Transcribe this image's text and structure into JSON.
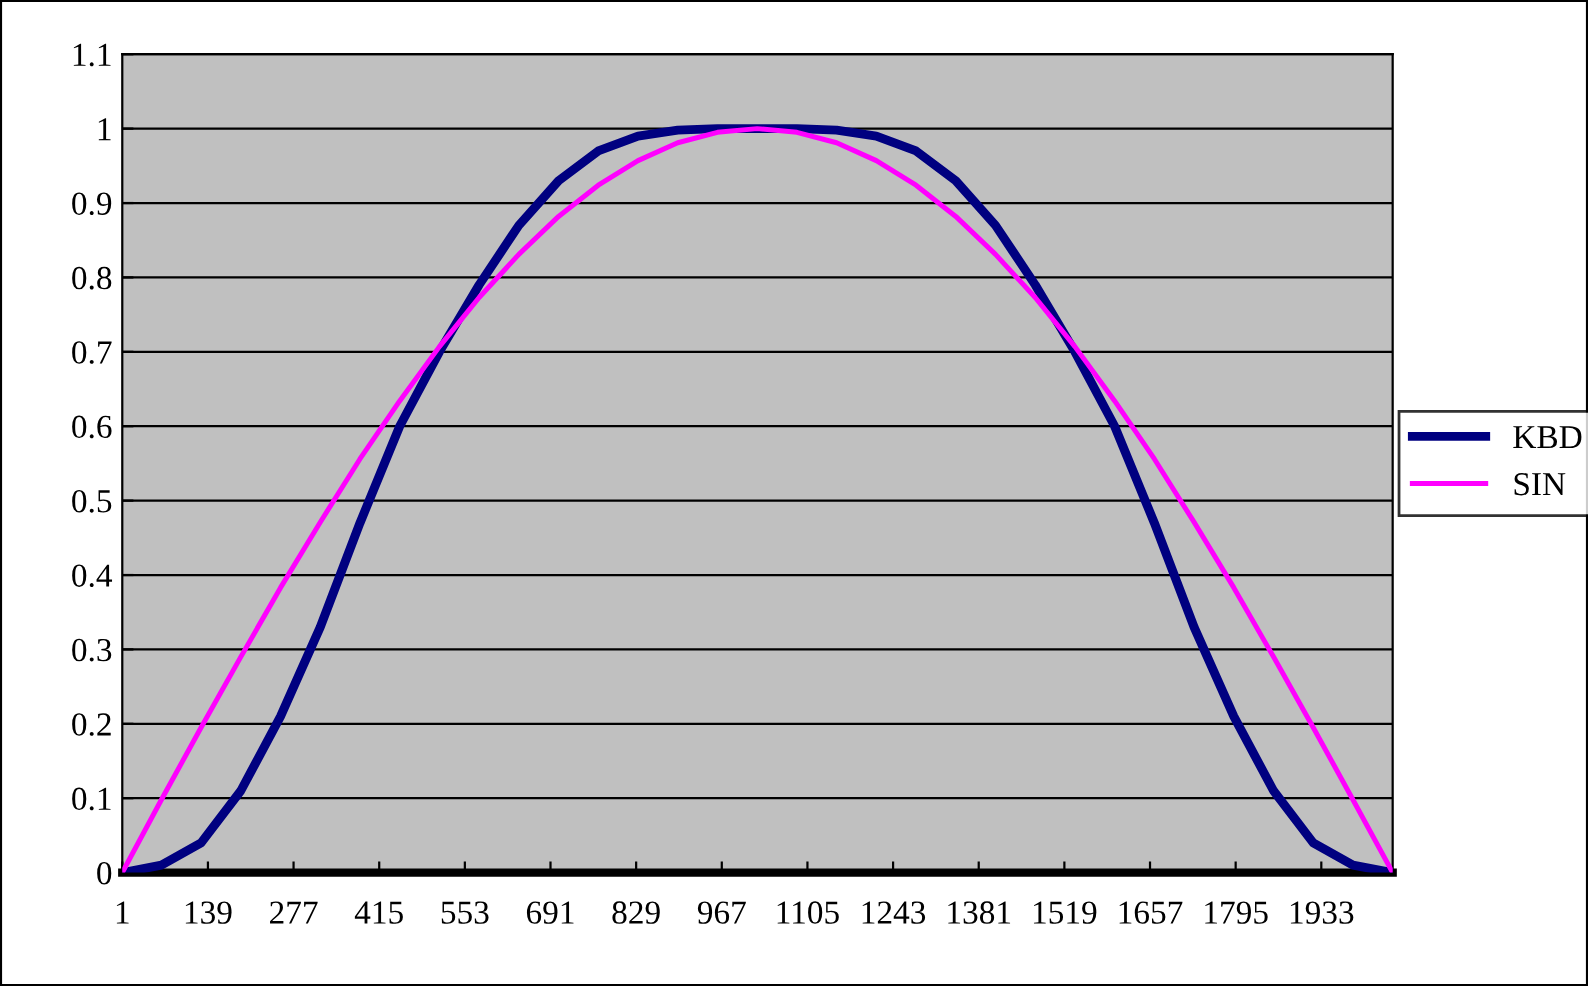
{
  "chart_data": {
    "type": "line",
    "x": [
      1,
      64,
      128,
      192,
      256,
      320,
      384,
      448,
      512,
      576,
      640,
      704,
      768,
      832,
      896,
      960,
      1024,
      1088,
      1152,
      1216,
      1280,
      1344,
      1408,
      1472,
      1536,
      1600,
      1664,
      1728,
      1792,
      1856,
      1920,
      1984,
      2048
    ],
    "series": [
      {
        "name": "KBD",
        "color": "#000080",
        "values": [
          0,
          0.01,
          0.04,
          0.11,
          0.21,
          0.33,
          0.47,
          0.6,
          0.7,
          0.79,
          0.87,
          0.93,
          0.97,
          0.99,
          0.998,
          1,
          1,
          1,
          0.998,
          0.99,
          0.97,
          0.93,
          0.87,
          0.79,
          0.7,
          0.6,
          0.47,
          0.33,
          0.21,
          0.11,
          0.04,
          0.01,
          0
        ]
      },
      {
        "name": "SIN",
        "color": "#ff00ff",
        "values": [
          0,
          0.098,
          0.195,
          0.29,
          0.383,
          0.471,
          0.556,
          0.634,
          0.707,
          0.773,
          0.831,
          0.882,
          0.924,
          0.957,
          0.981,
          0.995,
          1,
          0.995,
          0.981,
          0.957,
          0.924,
          0.882,
          0.831,
          0.773,
          0.707,
          0.634,
          0.556,
          0.471,
          0.383,
          0.29,
          0.195,
          0.098,
          0
        ]
      }
    ],
    "xlim": [
      1,
      2048
    ],
    "xticks": [
      1,
      139,
      277,
      415,
      553,
      691,
      829,
      967,
      1105,
      1243,
      1381,
      1519,
      1657,
      1795,
      1933
    ],
    "ylim": [
      0,
      1.1
    ],
    "yticks": [
      0,
      0.1,
      0.2,
      0.3,
      0.4,
      0.5,
      0.6,
      0.7,
      0.8,
      0.9,
      1,
      1.1
    ],
    "grid": "y",
    "legend": "right",
    "marker": "none",
    "line_style": "solid"
  }
}
